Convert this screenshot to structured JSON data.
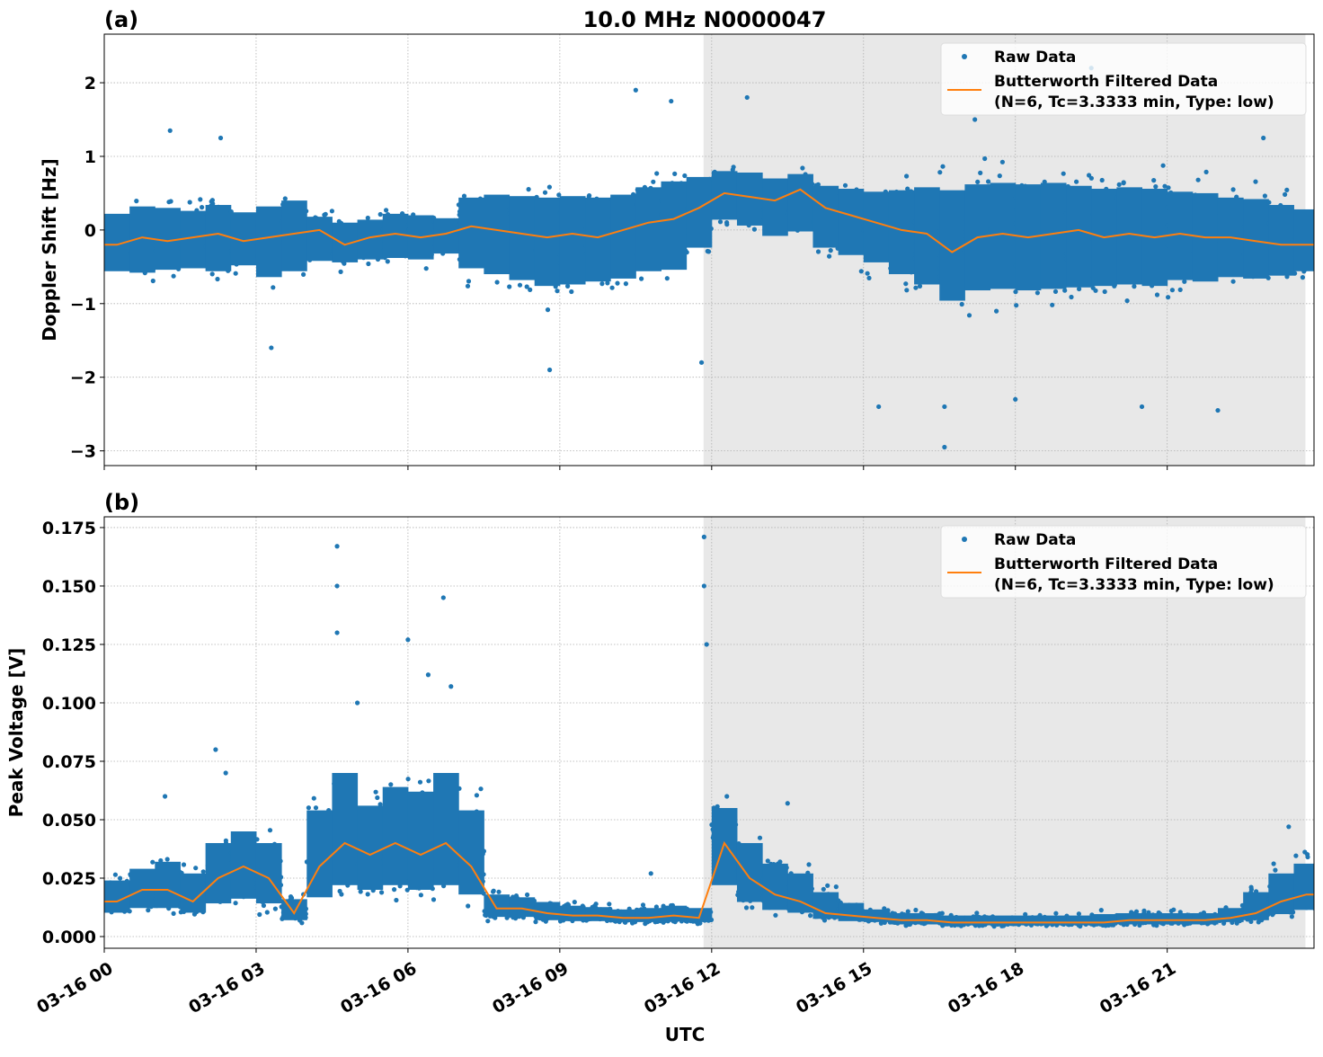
{
  "chart_data": [
    {
      "type": "scatter",
      "panel_label": "(a)",
      "title": "10.0 MHz N0000047",
      "xlabel": "",
      "ylabel": "Doppler Shift [Hz]",
      "ylim": [
        -3.2,
        2.66
      ],
      "xlim_hours": [
        0,
        23.9
      ],
      "yticks": [
        -3,
        -2,
        -1,
        0,
        1,
        2
      ],
      "ytick_labels": [
        "−3",
        "−2",
        "−1",
        "0",
        "1",
        "2"
      ],
      "grid": true,
      "legend_placement": "upper-right",
      "shaded_region_hours": [
        11.84,
        23.73
      ],
      "shade_color": "#e8e8e8",
      "bin_hours": [
        0,
        0.5,
        1,
        1.5,
        2,
        2.5,
        3,
        3.5,
        4,
        4.5,
        5,
        5.5,
        6,
        6.5,
        7,
        7.5,
        8,
        8.5,
        9,
        9.5,
        10,
        10.5,
        11,
        11.5,
        12,
        12.5,
        13,
        13.5,
        14,
        14.5,
        15,
        15.5,
        16,
        16.5,
        17,
        17.5,
        18,
        18.5,
        19,
        19.5,
        20,
        20.5,
        21,
        21.5,
        22,
        22.5,
        23,
        23.5
      ],
      "series": [
        {
          "name": "Raw Data",
          "kind": "points",
          "color": "#1f77b4",
          "raw_low": [
            -0.8,
            -0.9,
            -0.8,
            -0.8,
            -0.9,
            -0.7,
            -1.0,
            -0.9,
            -0.7,
            -0.6,
            -0.6,
            -0.6,
            -0.6,
            -0.5,
            -0.9,
            -1.0,
            -1.1,
            -1.2,
            -1.2,
            -1.1,
            -1.1,
            -1.0,
            -1.0,
            -0.6,
            -0.1,
            -0.2,
            -0.4,
            -0.4,
            -0.6,
            -0.7,
            -0.8,
            -1.0,
            -1.2,
            -1.4,
            -1.3,
            -1.3,
            -1.3,
            -1.3,
            -1.3,
            -1.2,
            -1.2,
            -1.2,
            -1.1,
            -1.1,
            -1.0,
            -1.0,
            -0.9,
            -0.8
          ],
          "raw_high": [
            0.5,
            0.6,
            0.6,
            0.5,
            0.6,
            0.5,
            0.6,
            0.7,
            0.3,
            0.3,
            0.3,
            0.4,
            0.4,
            0.3,
            0.7,
            0.8,
            0.8,
            0.8,
            0.8,
            0.8,
            0.8,
            0.9,
            1.0,
            1.0,
            1.0,
            1.0,
            0.9,
            0.9,
            0.8,
            0.8,
            0.8,
            0.9,
            1.0,
            1.1,
            1.1,
            1.1,
            1.1,
            1.1,
            1.0,
            1.0,
            1.0,
            1.0,
            0.9,
            0.9,
            0.8,
            0.8,
            0.7,
            0.6
          ],
          "outliers": [
            [
              1.3,
              1.35
            ],
            [
              2.3,
              1.25
            ],
            [
              3.3,
              -1.6
            ],
            [
              8.8,
              -1.9
            ],
            [
              10.5,
              1.9
            ],
            [
              11.2,
              1.75
            ],
            [
              11.8,
              -1.8
            ],
            [
              12.7,
              1.8
            ],
            [
              15.3,
              -2.4
            ],
            [
              16.6,
              -2.95
            ],
            [
              16.6,
              -2.4
            ],
            [
              17.2,
              1.5
            ],
            [
              18.0,
              -2.3
            ],
            [
              19.5,
              2.2
            ],
            [
              20.5,
              -2.4
            ],
            [
              22.0,
              -2.45
            ],
            [
              22.9,
              1.25
            ]
          ]
        },
        {
          "name": "Butterworth Filtered Data\n(N=6, Tc=3.3333 min, Type: low)",
          "kind": "line",
          "color": "#ff7f0e",
          "values": [
            -0.2,
            -0.1,
            -0.15,
            -0.1,
            -0.05,
            -0.15,
            -0.1,
            -0.05,
            0.0,
            -0.2,
            -0.1,
            -0.05,
            -0.1,
            -0.05,
            0.05,
            0.0,
            -0.05,
            -0.1,
            -0.05,
            -0.1,
            0.0,
            0.1,
            0.15,
            0.3,
            0.5,
            0.45,
            0.4,
            0.55,
            0.3,
            0.2,
            0.1,
            0.0,
            -0.05,
            -0.3,
            -0.1,
            -0.05,
            -0.1,
            -0.05,
            0.0,
            -0.1,
            -0.05,
            -0.1,
            -0.05,
            -0.1,
            -0.1,
            -0.15,
            -0.2,
            -0.2
          ]
        }
      ],
      "legend": {
        "raw": "Raw Data",
        "filtered_line1": "Butterworth Filtered Data",
        "filtered_line2": "(N=6, Tc=3.3333 min, Type: low)"
      }
    },
    {
      "type": "scatter",
      "panel_label": "(b)",
      "title": "",
      "xlabel": "UTC",
      "ylabel": "Peak Voltage [V]",
      "ylim": [
        -0.005,
        0.1796
      ],
      "xlim_hours": [
        0,
        23.9
      ],
      "yticks": [
        0,
        0.025,
        0.05,
        0.075,
        0.1,
        0.125,
        0.15,
        0.175
      ],
      "ytick_labels": [
        "0.000",
        "0.025",
        "0.050",
        "0.075",
        "0.100",
        "0.125",
        "0.150",
        "0.175"
      ],
      "xticks_hours": [
        0,
        3,
        6,
        9,
        12,
        15,
        18,
        21
      ],
      "xtick_labels": [
        "03-16 00",
        "03-16 03",
        "03-16 06",
        "03-16 09",
        "03-16 12",
        "03-16 15",
        "03-16 18",
        "03-16 21"
      ],
      "grid": true,
      "legend_placement": "upper-right",
      "shaded_region_hours": [
        11.84,
        23.73
      ],
      "shade_color": "#e8e8e8",
      "bin_hours": [
        0,
        0.5,
        1,
        1.5,
        2,
        2.5,
        3,
        3.5,
        4,
        4.5,
        5,
        5.5,
        6,
        6.5,
        7,
        7.5,
        8,
        8.5,
        9,
        9.5,
        10,
        10.5,
        11,
        11.5,
        12,
        12.5,
        13,
        13.5,
        14,
        14.5,
        15,
        15.5,
        16,
        16.5,
        17,
        17.5,
        18,
        18.5,
        19,
        19.5,
        20,
        20.5,
        21,
        21.5,
        22,
        22.5,
        23,
        23.5
      ],
      "series": [
        {
          "name": "Raw Data",
          "kind": "points",
          "color": "#1f77b4",
          "raw_low": [
            0.007,
            0.007,
            0.007,
            0.007,
            0.007,
            0.007,
            0.007,
            0.005,
            0.008,
            0.01,
            0.01,
            0.01,
            0.01,
            0.01,
            0.01,
            0.006,
            0.006,
            0.005,
            0.005,
            0.005,
            0.005,
            0.005,
            0.005,
            0.005,
            0.01,
            0.008,
            0.007,
            0.007,
            0.006,
            0.005,
            0.005,
            0.004,
            0.004,
            0.004,
            0.004,
            0.004,
            0.004,
            0.004,
            0.004,
            0.004,
            0.004,
            0.004,
            0.004,
            0.004,
            0.005,
            0.005,
            0.006,
            0.007
          ],
          "raw_high": [
            0.03,
            0.035,
            0.04,
            0.035,
            0.05,
            0.055,
            0.05,
            0.02,
            0.07,
            0.09,
            0.07,
            0.08,
            0.08,
            0.09,
            0.07,
            0.022,
            0.02,
            0.018,
            0.016,
            0.015,
            0.014,
            0.015,
            0.016,
            0.015,
            0.065,
            0.05,
            0.04,
            0.035,
            0.025,
            0.018,
            0.014,
            0.012,
            0.012,
            0.011,
            0.011,
            0.011,
            0.011,
            0.011,
            0.011,
            0.012,
            0.012,
            0.012,
            0.012,
            0.012,
            0.015,
            0.025,
            0.035,
            0.04
          ],
          "outliers": [
            [
              1.2,
              0.06
            ],
            [
              2.2,
              0.08
            ],
            [
              2.4,
              0.07
            ],
            [
              4.6,
              0.167
            ],
            [
              4.6,
              0.15
            ],
            [
              4.6,
              0.13
            ],
            [
              5.0,
              0.1
            ],
            [
              6.0,
              0.127
            ],
            [
              6.4,
              0.112
            ],
            [
              6.7,
              0.145
            ],
            [
              6.85,
              0.107
            ],
            [
              10.8,
              0.027
            ],
            [
              11.85,
              0.171
            ],
            [
              11.85,
              0.15
            ],
            [
              11.9,
              0.125
            ],
            [
              12.3,
              0.06
            ],
            [
              13.5,
              0.057
            ],
            [
              23.4,
              0.047
            ]
          ]
        },
        {
          "name": "Butterworth Filtered Data\n(N=6, Tc=3.3333 min, Type: low)",
          "kind": "line",
          "color": "#ff7f0e",
          "values": [
            0.015,
            0.02,
            0.02,
            0.015,
            0.025,
            0.03,
            0.025,
            0.01,
            0.03,
            0.04,
            0.035,
            0.04,
            0.035,
            0.04,
            0.03,
            0.012,
            0.012,
            0.01,
            0.009,
            0.009,
            0.008,
            0.008,
            0.009,
            0.008,
            0.04,
            0.025,
            0.018,
            0.015,
            0.01,
            0.009,
            0.008,
            0.007,
            0.007,
            0.006,
            0.006,
            0.006,
            0.006,
            0.006,
            0.006,
            0.006,
            0.007,
            0.007,
            0.007,
            0.007,
            0.008,
            0.01,
            0.015,
            0.018
          ]
        }
      ],
      "legend": {
        "raw": "Raw Data",
        "filtered_line1": "Butterworth Filtered Data",
        "filtered_line2": "(N=6, Tc=3.3333 min, Type: low)"
      }
    }
  ]
}
